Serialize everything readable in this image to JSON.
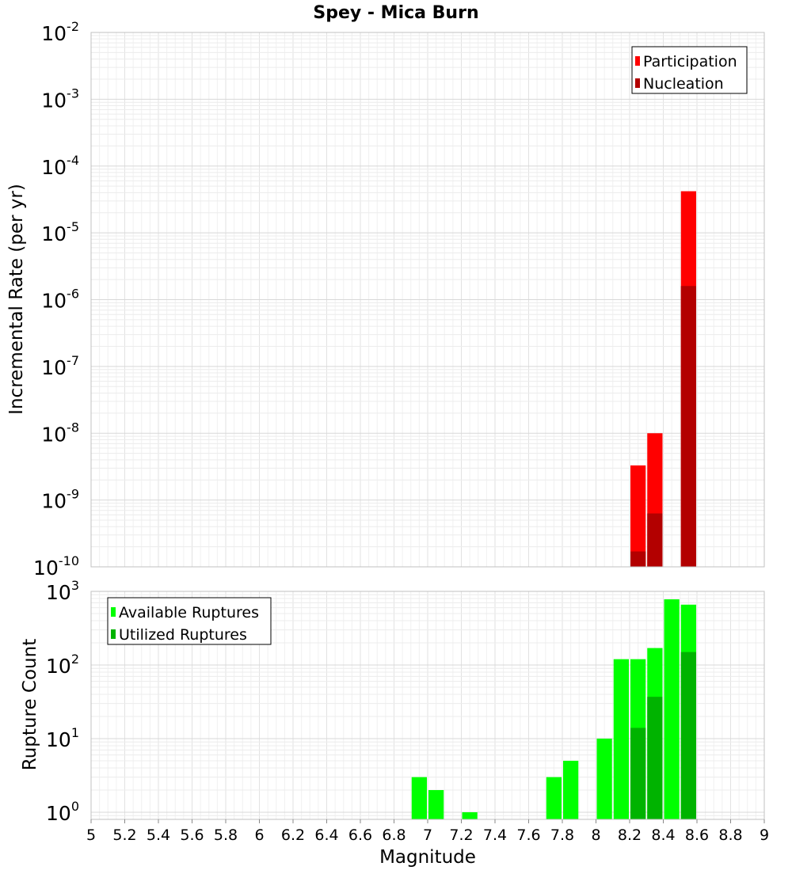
{
  "chart_data": [
    {
      "type": "bar",
      "title": "Spey - Mica Burn",
      "xlabel": "Magnitude",
      "ylabel": "Incremental Rate (per yr)",
      "yscale": "log",
      "ylim": [
        1e-10,
        0.01
      ],
      "xlim": [
        5,
        9
      ],
      "y_tick_bases": [
        "10",
        "10",
        "10",
        "10",
        "10",
        "10",
        "10",
        "10",
        "10"
      ],
      "y_tick_exponents": [
        "-10",
        "-9",
        "-8",
        "-7",
        "-6",
        "-5",
        "-4",
        "-3",
        "-2"
      ],
      "legend_position": "top-right",
      "series": [
        {
          "name": "Participation",
          "color": "#ff0000",
          "x": [
            8.25,
            8.35,
            8.55
          ],
          "values": [
            3.3e-09,
            1e-08,
            4.2e-05
          ]
        },
        {
          "name": "Nucleation",
          "color": "#b30000",
          "x": [
            8.25,
            8.35,
            8.55
          ],
          "values": [
            1.7e-10,
            6.3e-10,
            1.6e-06
          ]
        }
      ]
    },
    {
      "type": "bar",
      "xlabel": "Magnitude",
      "ylabel": "Rupture Count",
      "yscale": "log",
      "ylim": [
        0.8,
        1000
      ],
      "xlim": [
        5,
        9
      ],
      "x_ticks": [
        "5",
        "5.2",
        "5.4",
        "5.6",
        "5.8",
        "6",
        "6.2",
        "6.4",
        "6.6",
        "6.8",
        "7",
        "7.2",
        "7.4",
        "7.6",
        "7.8",
        "8",
        "8.2",
        "8.4",
        "8.6",
        "8.8",
        "9"
      ],
      "y_tick_bases": [
        "10",
        "10",
        "10",
        "10"
      ],
      "y_tick_exponents": [
        "0",
        "1",
        "2",
        "3"
      ],
      "legend_position": "top-left",
      "series": [
        {
          "name": "Available Ruptures",
          "color": "#00ff00",
          "x": [
            6.95,
            7.05,
            7.25,
            7.75,
            7.85,
            8.05,
            8.15,
            8.25,
            8.35,
            8.45,
            8.55
          ],
          "values": [
            3,
            2,
            1,
            3,
            5,
            10,
            120,
            120,
            170,
            780,
            660
          ]
        },
        {
          "name": "Utilized Ruptures",
          "color": "#00b300",
          "x": [
            8.25,
            8.35,
            8.55
          ],
          "values": [
            14,
            37,
            150
          ]
        }
      ]
    }
  ]
}
